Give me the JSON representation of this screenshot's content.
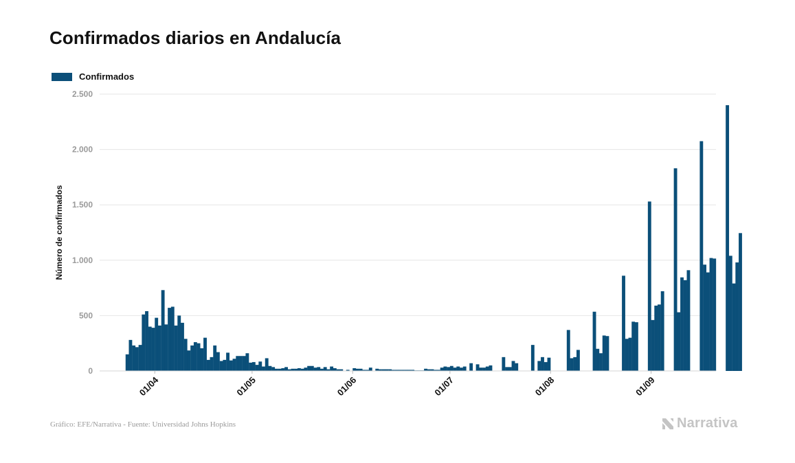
{
  "header": {
    "title": "Confirmados diarios en Andalucía"
  },
  "legend": {
    "label": "Confirmados",
    "color": "#0b4f79"
  },
  "footer": {
    "source": "Gráfico: EFE/Narrativa - Fuente: Universidad Johns Hopkins"
  },
  "brand": {
    "name": "Narrativa",
    "icon": "narrativa-logo-icon"
  },
  "chart_data": {
    "type": "bar",
    "title": "Confirmados diarios en Andalucía",
    "xlabel": "",
    "ylabel": "Número de confirmados",
    "ylim": [
      0,
      2500
    ],
    "yticks": [
      0,
      500,
      1000,
      1500,
      2000,
      2500
    ],
    "ytick_labels": [
      "0",
      "500",
      "1.000",
      "1.500",
      "2.000",
      "2.500"
    ],
    "grid": true,
    "legend_position": "top-left",
    "x_start": "2020-03-15",
    "x_end": "2020-09-21",
    "xtick_labels": [
      {
        "label": "01/04",
        "date": "2020-04-01"
      },
      {
        "label": "01/05",
        "date": "2020-05-01"
      },
      {
        "label": "01/06",
        "date": "2020-06-01"
      },
      {
        "label": "01/07",
        "date": "2020-07-01"
      },
      {
        "label": "01/08",
        "date": "2020-08-01"
      },
      {
        "label": "01/09",
        "date": "2020-09-01"
      }
    ],
    "series": [
      {
        "name": "Confirmados",
        "color": "#0b4f79",
        "start_date": "2020-03-23",
        "values": [
          150,
          280,
          230,
          215,
          235,
          510,
          540,
          400,
          390,
          480,
          410,
          730,
          420,
          570,
          580,
          410,
          500,
          435,
          290,
          185,
          230,
          260,
          250,
          205,
          300,
          100,
          125,
          230,
          170,
          90,
          100,
          165,
          95,
          110,
          135,
          135,
          135,
          160,
          75,
          80,
          55,
          85,
          40,
          115,
          45,
          35,
          20,
          20,
          25,
          35,
          15,
          20,
          20,
          25,
          20,
          30,
          45,
          45,
          30,
          35,
          20,
          35,
          15,
          40,
          25,
          15,
          15,
          0,
          10,
          0,
          25,
          20,
          20,
          10,
          10,
          30,
          0,
          20,
          15,
          15,
          15,
          15,
          10,
          10,
          10,
          10,
          10,
          10,
          10,
          5,
          5,
          5,
          20,
          15,
          15,
          10,
          10,
          30,
          40,
          35,
          45,
          30,
          40,
          30,
          40,
          0,
          70,
          0,
          60,
          30,
          30,
          40,
          50,
          0,
          0,
          0,
          125,
          35,
          35,
          90,
          70,
          0,
          0,
          0,
          0,
          235,
          0,
          90,
          125,
          80,
          120,
          0,
          0,
          0,
          0,
          0,
          370,
          115,
          125,
          190,
          0,
          0,
          0,
          0,
          535,
          200,
          160,
          320,
          315,
          0,
          0,
          0,
          0,
          860,
          290,
          300,
          445,
          440,
          0,
          0,
          0,
          1530,
          460,
          590,
          600,
          720,
          0,
          0,
          0,
          1830,
          530,
          845,
          820,
          910,
          0,
          0,
          0,
          2075,
          960,
          890,
          1020,
          1015,
          0,
          0,
          0,
          2400,
          1040,
          790,
          980,
          1245
        ]
      }
    ]
  }
}
